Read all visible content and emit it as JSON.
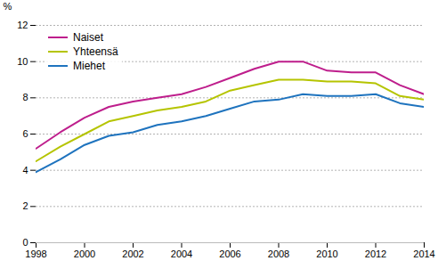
{
  "chart_data": {
    "type": "line",
    "ylabel": "%",
    "x": [
      1998,
      1999,
      2000,
      2001,
      2002,
      2003,
      2004,
      2005,
      2006,
      2007,
      2008,
      2009,
      2010,
      2011,
      2012,
      2013,
      2014
    ],
    "series": [
      {
        "name": "Naiset",
        "color": "#be1e8c",
        "values": [
          5.2,
          6.1,
          6.9,
          7.5,
          7.8,
          8.0,
          8.2,
          8.6,
          9.1,
          9.6,
          10.0,
          10.0,
          9.5,
          9.4,
          9.4,
          8.7,
          8.2
        ]
      },
      {
        "name": "Yhteensä",
        "color": "#b5c400",
        "values": [
          4.5,
          5.3,
          6.0,
          6.7,
          7.0,
          7.3,
          7.5,
          7.8,
          8.4,
          8.7,
          9.0,
          9.0,
          8.9,
          8.9,
          8.8,
          8.1,
          7.9
        ]
      },
      {
        "name": "Miehet",
        "color": "#1e73be",
        "values": [
          3.9,
          4.6,
          5.4,
          5.9,
          6.1,
          6.5,
          6.7,
          7.0,
          7.4,
          7.8,
          7.9,
          8.2,
          8.1,
          8.1,
          8.2,
          7.7,
          7.5
        ]
      }
    ],
    "xlim": [
      1998,
      2014
    ],
    "xticks": [
      1998,
      2000,
      2002,
      2004,
      2006,
      2008,
      2010,
      2012,
      2014
    ],
    "ylim": [
      0,
      12
    ],
    "yticks": [
      0,
      2,
      4,
      6,
      8,
      10,
      12
    ],
    "grid": true,
    "legend": "upper left"
  }
}
